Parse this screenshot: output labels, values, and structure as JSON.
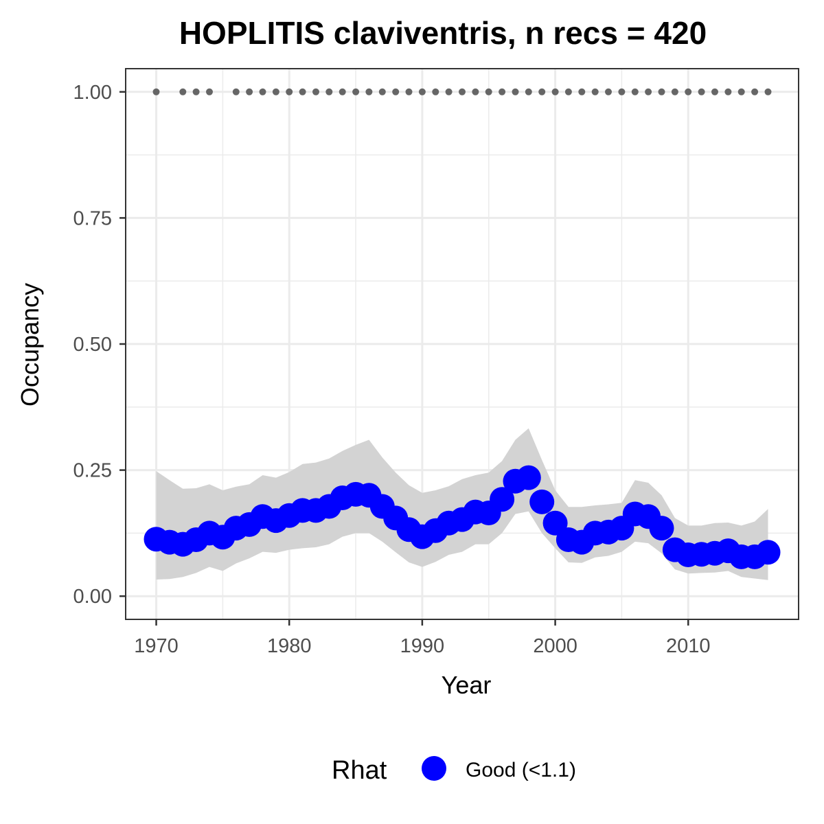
{
  "chart_data": {
    "type": "line",
    "title": "HOPLITIS claviventris, n recs = 420",
    "xlabel": "Year",
    "ylabel": "Occupancy",
    "xlim": [
      1967.7,
      2018.3
    ],
    "ylim": [
      -0.046,
      1.046
    ],
    "x_ticks": [
      1970,
      1980,
      1990,
      2000,
      2010
    ],
    "x_tick_labels": [
      "1970",
      "1980",
      "1990",
      "2000",
      "2010"
    ],
    "y_ticks": [
      0,
      0.25,
      0.5,
      0.75,
      1.0
    ],
    "y_tick_labels": [
      "0.00",
      "0.25",
      "0.50",
      "0.75",
      "1.00"
    ],
    "grid": true,
    "legend": {
      "position": "bottom",
      "title": "Rhat",
      "entries": [
        {
          "label": "Good (<1.1)",
          "color": "#0000ff"
        }
      ]
    },
    "colors": {
      "points": "#0000ff",
      "ribbon": "#d3d3d3",
      "record_dots": "#666666",
      "grid": "#ebebeb",
      "panel_border": "#333333"
    },
    "series": [
      {
        "x": [
          1970,
          1971,
          1972,
          1973,
          1974,
          1975,
          1976,
          1977,
          1978,
          1979,
          1980,
          1981,
          1982,
          1983,
          1984,
          1985,
          1986,
          1987,
          1988,
          1989,
          1990,
          1991,
          1992,
          1993,
          1994,
          1995,
          1996,
          1997,
          1998,
          1999,
          2000,
          2001,
          2002,
          2003,
          2004,
          2005,
          2006,
          2007,
          2008,
          2009,
          2010,
          2011,
          2012,
          2013,
          2014,
          2015,
          2016
        ],
        "y": [
          0.113,
          0.107,
          0.103,
          0.112,
          0.125,
          0.117,
          0.135,
          0.142,
          0.158,
          0.15,
          0.16,
          0.17,
          0.17,
          0.178,
          0.195,
          0.202,
          0.2,
          0.178,
          0.155,
          0.132,
          0.118,
          0.13,
          0.145,
          0.152,
          0.167,
          0.165,
          0.192,
          0.228,
          0.235,
          0.187,
          0.145,
          0.112,
          0.107,
          0.125,
          0.127,
          0.135,
          0.163,
          0.158,
          0.135,
          0.092,
          0.082,
          0.083,
          0.085,
          0.09,
          0.078,
          0.078,
          0.087
        ],
        "y_lower": [
          0.033,
          0.034,
          0.038,
          0.046,
          0.058,
          0.05,
          0.065,
          0.075,
          0.088,
          0.086,
          0.092,
          0.095,
          0.097,
          0.103,
          0.118,
          0.125,
          0.125,
          0.108,
          0.087,
          0.067,
          0.058,
          0.068,
          0.082,
          0.088,
          0.103,
          0.103,
          0.125,
          0.163,
          0.168,
          0.125,
          0.095,
          0.067,
          0.066,
          0.077,
          0.08,
          0.088,
          0.108,
          0.105,
          0.085,
          0.053,
          0.045,
          0.046,
          0.047,
          0.05,
          0.038,
          0.035,
          0.032
        ],
        "y_upper": [
          0.248,
          0.23,
          0.213,
          0.214,
          0.222,
          0.21,
          0.217,
          0.222,
          0.24,
          0.235,
          0.246,
          0.262,
          0.265,
          0.273,
          0.288,
          0.3,
          0.31,
          0.275,
          0.245,
          0.22,
          0.205,
          0.21,
          0.218,
          0.232,
          0.24,
          0.245,
          0.268,
          0.31,
          0.333,
          0.27,
          0.21,
          0.177,
          0.177,
          0.18,
          0.182,
          0.185,
          0.23,
          0.225,
          0.2,
          0.155,
          0.14,
          0.14,
          0.145,
          0.146,
          0.14,
          0.148,
          0.173
        ]
      }
    ],
    "record_years": [
      1970,
      1972,
      1973,
      1974,
      1976,
      1977,
      1978,
      1979,
      1980,
      1981,
      1982,
      1983,
      1984,
      1985,
      1986,
      1987,
      1988,
      1989,
      1990,
      1991,
      1992,
      1993,
      1994,
      1995,
      1996,
      1997,
      1998,
      1999,
      2000,
      2001,
      2002,
      2003,
      2004,
      2005,
      2006,
      2007,
      2008,
      2009,
      2010,
      2011,
      2012,
      2013,
      2014,
      2015,
      2016
    ],
    "record_value": 1.0
  }
}
